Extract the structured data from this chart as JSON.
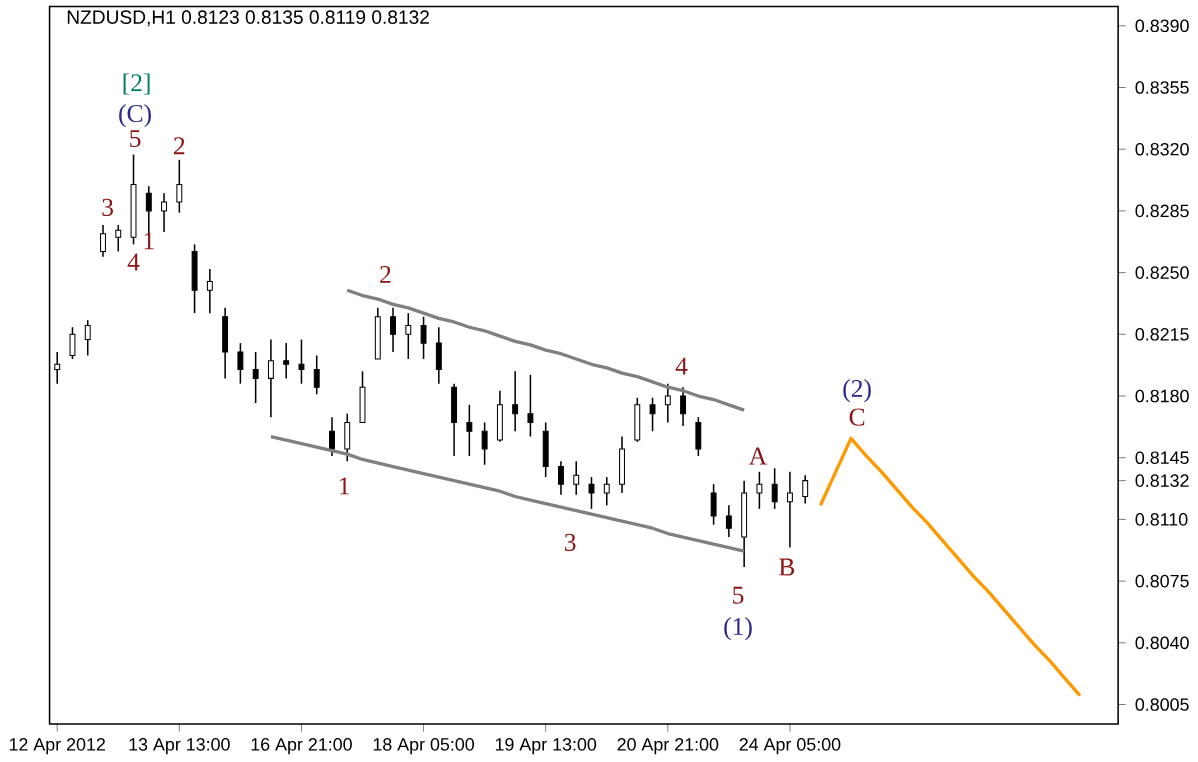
{
  "chart_data": {
    "type": "candlestick",
    "title": "NZDUSD,H1 0.8123 0.8135 0.8119 0.8132",
    "categories": [
      "12 Apr 2012",
      null,
      null,
      null,
      null,
      null,
      null,
      null,
      "13 Apr 13:00",
      null,
      null,
      null,
      null,
      null,
      null,
      null,
      "16 Apr 21:00",
      null,
      null,
      null,
      null,
      null,
      null,
      null,
      "18 Apr 05:00",
      null,
      null,
      null,
      null,
      null,
      null,
      null,
      "19 Apr 13:00",
      null,
      null,
      null,
      null,
      null,
      null,
      null,
      "20 Apr 21:00",
      null,
      null,
      null,
      null,
      null,
      null,
      null,
      "24 Apr 05:00",
      null,
      null,
      null,
      null,
      null,
      null,
      null,
      null,
      null,
      null,
      null,
      null,
      null,
      null,
      null,
      null,
      null,
      null,
      null,
      null,
      null
    ],
    "ylim": [
      0.7994,
      0.8401
    ],
    "yticks": [
      0.8005,
      {
        "value": 0.804,
        "label": "0.8040"
      },
      0.8075,
      {
        "value": 0.811,
        "label": "0.8110"
      },
      0.8145,
      {
        "value": 0.818,
        "label": "0.8180"
      },
      0.8215,
      {
        "value": 0.825,
        "label": "0.8250"
      },
      0.8285,
      {
        "value": 0.832,
        "label": "0.8320"
      },
      0.8355,
      {
        "value": 0.839,
        "label": "0.8390"
      },
      {
        "value": 0.8132,
        "label": "0.8132"
      }
    ],
    "series": [
      {
        "type": "candlestick",
        "color": "#000000",
        "ohlc": [
          [
            0.8195,
            0.8205,
            0.8187,
            0.8198
          ],
          [
            0.8203,
            0.8219,
            0.8201,
            0.8215
          ],
          [
            0.8212,
            0.8223,
            0.8203,
            0.822
          ],
          [
            0.8262,
            0.8277,
            0.8259,
            0.8272
          ],
          [
            0.827,
            0.8277,
            0.8262,
            0.8274
          ],
          [
            0.827,
            0.8317,
            0.8266,
            0.83
          ],
          [
            0.8295,
            0.8299,
            0.827,
            0.8285
          ],
          [
            0.8285,
            0.8295,
            0.8273,
            0.829
          ],
          [
            0.829,
            0.8314,
            0.8284,
            0.83
          ],
          [
            0.8262,
            0.8266,
            0.8227,
            0.824
          ],
          [
            0.824,
            0.8252,
            0.8227,
            0.8245
          ],
          [
            0.8225,
            0.823,
            0.819,
            0.8205
          ],
          [
            0.8205,
            0.821,
            0.8187,
            0.8195
          ],
          [
            0.8195,
            0.8205,
            0.8176,
            0.819
          ],
          [
            0.819,
            0.8212,
            0.8168,
            0.82
          ],
          [
            0.82,
            0.821,
            0.819,
            0.8198
          ],
          [
            0.8198,
            0.8212,
            0.8187,
            0.8195
          ],
          [
            0.8195,
            0.8203,
            0.8181,
            0.8185
          ],
          [
            0.816,
            0.8168,
            0.8146,
            0.815
          ],
          [
            0.815,
            0.817,
            0.8143,
            0.8165
          ],
          [
            0.8165,
            0.8194,
            0.8165,
            0.8185
          ],
          [
            0.8201,
            0.823,
            0.8201,
            0.8225
          ],
          [
            0.8225,
            0.823,
            0.8205,
            0.8215
          ],
          [
            0.8215,
            0.8227,
            0.8201,
            0.822
          ],
          [
            0.822,
            0.8225,
            0.8201,
            0.821
          ],
          [
            0.821,
            0.8219,
            0.8187,
            0.8195
          ],
          [
            0.8185,
            0.8187,
            0.8146,
            0.8165
          ],
          [
            0.8165,
            0.8175,
            0.8146,
            0.816
          ],
          [
            0.816,
            0.8165,
            0.8141,
            0.815
          ],
          [
            0.8155,
            0.8183,
            0.8154,
            0.8175
          ],
          [
            0.8175,
            0.8194,
            0.816,
            0.817
          ],
          [
            0.817,
            0.8192,
            0.8157,
            0.8165
          ],
          [
            0.816,
            0.8165,
            0.8134,
            0.814
          ],
          [
            0.814,
            0.8143,
            0.8124,
            0.813
          ],
          [
            0.813,
            0.8143,
            0.8124,
            0.8135
          ],
          [
            0.813,
            0.8134,
            0.8116,
            0.8125
          ],
          [
            0.8125,
            0.8134,
            0.8118,
            0.813
          ],
          [
            0.813,
            0.8157,
            0.8125,
            0.815
          ],
          [
            0.8155,
            0.8179,
            0.8154,
            0.8175
          ],
          [
            0.8175,
            0.8179,
            0.816,
            0.817
          ],
          [
            0.8175,
            0.8187,
            0.8165,
            0.818
          ],
          [
            0.818,
            0.8185,
            0.8163,
            0.817
          ],
          [
            0.8165,
            0.8168,
            0.8146,
            0.815
          ],
          [
            0.8125,
            0.813,
            0.8107,
            0.8112
          ],
          [
            0.8112,
            0.8118,
            0.81,
            0.8105
          ],
          [
            0.81,
            0.8132,
            0.8083,
            0.8125
          ],
          [
            0.8125,
            0.8137,
            0.8116,
            0.813
          ],
          [
            0.813,
            0.8139,
            0.8116,
            0.812
          ],
          [
            0.812,
            0.8137,
            0.8094,
            0.8125
          ],
          [
            0.8123,
            0.8135,
            0.8119,
            0.8132
          ],
          null,
          null,
          null,
          null,
          null,
          null,
          null,
          null,
          null,
          null,
          null,
          null,
          null,
          null,
          null,
          null,
          null,
          null,
          null,
          null
        ]
      },
      {
        "type": "line",
        "color": "#808080",
        "values": [
          null,
          null,
          null,
          null,
          null,
          null,
          null,
          null,
          null,
          null,
          null,
          null,
          null,
          null,
          null,
          null,
          null,
          null,
          null,
          0.824,
          0.8237,
          0.8235,
          0.8232,
          0.823,
          0.8227,
          0.8224,
          0.8222,
          0.8219,
          0.8217,
          0.8214,
          0.8211,
          0.8209,
          0.8206,
          0.8204,
          0.8201,
          0.8198,
          0.8196,
          0.8193,
          0.8191,
          0.8188,
          0.8185,
          0.8183,
          0.818,
          0.8178,
          0.8175,
          0.8172,
          null,
          null,
          null,
          null,
          null,
          null,
          null,
          null,
          null,
          null,
          null,
          null,
          null,
          null,
          null,
          null,
          null,
          null,
          null,
          null,
          null,
          null,
          null,
          null
        ]
      },
      {
        "type": "line",
        "color": "#808080",
        "values": [
          null,
          null,
          null,
          null,
          null,
          null,
          null,
          null,
          null,
          null,
          null,
          null,
          null,
          null,
          0.8157,
          0.8155,
          0.8153,
          0.8151,
          0.8149,
          0.8147,
          0.8144,
          0.8142,
          0.814,
          0.8138,
          0.8136,
          0.8134,
          0.8132,
          0.813,
          0.8128,
          0.8126,
          0.8123,
          0.8121,
          0.8119,
          0.8117,
          0.8115,
          0.8113,
          0.8111,
          0.8109,
          0.8107,
          0.8105,
          0.8102,
          0.81,
          0.8098,
          0.8096,
          0.8094,
          0.8092,
          null,
          null,
          null,
          null,
          null,
          null,
          null,
          null,
          null,
          null,
          null,
          null,
          null,
          null,
          null,
          null,
          null,
          null,
          null,
          null,
          null,
          null,
          null,
          null
        ]
      },
      {
        "type": "line",
        "color": "#ff9900",
        "values": [
          null,
          null,
          null,
          null,
          null,
          null,
          null,
          null,
          null,
          null,
          null,
          null,
          null,
          null,
          null,
          null,
          null,
          null,
          null,
          null,
          null,
          null,
          null,
          null,
          null,
          null,
          null,
          null,
          null,
          null,
          null,
          null,
          null,
          null,
          null,
          null,
          null,
          null,
          null,
          null,
          null,
          null,
          null,
          null,
          null,
          null,
          null,
          null,
          null,
          null,
          0.8118,
          0.8137,
          0.8156,
          0.8146,
          0.8137,
          0.8127,
          0.8117,
          0.8108,
          0.8098,
          0.8088,
          0.8078,
          0.8069,
          0.8059,
          0.8049,
          0.8039,
          0.803,
          0.802,
          0.801,
          null,
          null
        ]
      }
    ],
    "annotations": [
      "[2]",
      "(C)",
      "5",
      "2",
      "3",
      "4",
      "1",
      "2",
      "1",
      "3",
      "4",
      "5",
      "(1)",
      "A",
      "B",
      "(2)",
      "C"
    ]
  }
}
